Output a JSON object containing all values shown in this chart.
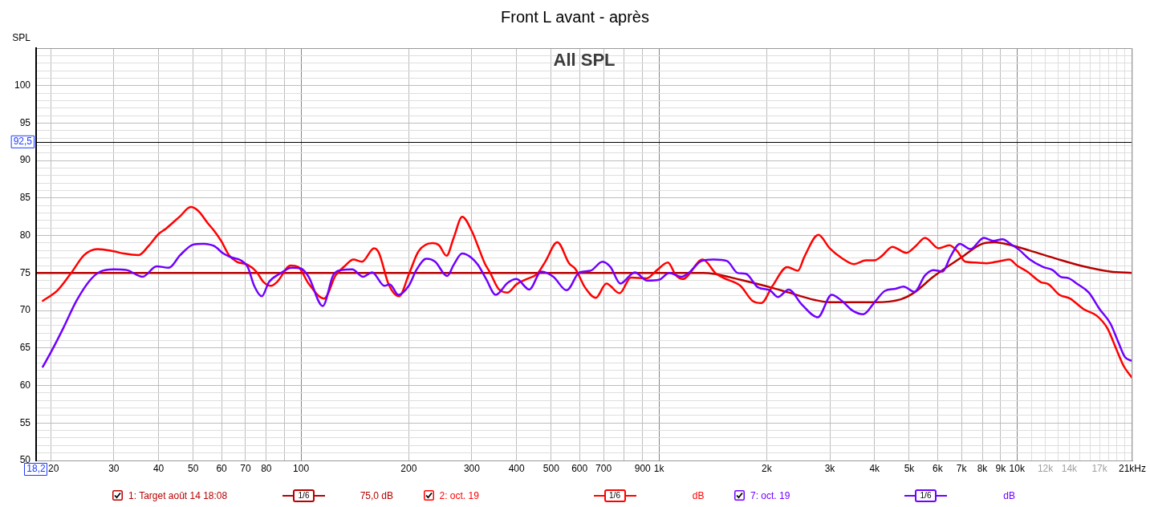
{
  "chart_data": {
    "type": "line",
    "title": "Front L avant - après",
    "subtitle": "All SPL",
    "xlabel": "Hz",
    "ylabel": "SPL",
    "log": "x",
    "grid": true,
    "legend": "bottom",
    "xlim": [
      18.2,
      21000
    ],
    "ylim": [
      50,
      105
    ],
    "xticks": [
      {
        "value": 18.2,
        "label": "18,2"
      },
      20,
      30,
      40,
      50,
      60,
      70,
      80,
      {
        "value": 90,
        "label": null
      },
      100,
      200,
      300,
      400,
      500,
      600,
      700,
      {
        "value": 800,
        "label": null
      },
      900,
      {
        "value": 1000,
        "label": "1k"
      },
      {
        "value": 2000,
        "label": "2k"
      },
      {
        "value": 3000,
        "label": "3k"
      },
      {
        "value": 4000,
        "label": "4k"
      },
      {
        "value": 5000,
        "label": "5k"
      },
      {
        "value": 6000,
        "label": "6k"
      },
      {
        "value": 7000,
        "label": "7k"
      },
      {
        "value": 8000,
        "label": "8k"
      },
      {
        "value": 9000,
        "label": "9k"
      },
      {
        "value": 10000,
        "label": "10k"
      },
      {
        "value": 11000,
        "label": null
      },
      {
        "value": 12000,
        "label": "12k"
      },
      {
        "value": 13000,
        "label": null
      },
      {
        "value": 14000,
        "label": "14k"
      },
      {
        "value": 15000,
        "label": null
      },
      {
        "value": 16000,
        "label": null
      },
      {
        "value": 17000,
        "label": "17k"
      },
      {
        "value": 18000,
        "label": null
      },
      {
        "value": 19000,
        "label": null
      },
      {
        "value": 20000,
        "label": null
      },
      {
        "value": 21000,
        "label": "21k"
      }
    ],
    "yticks": [
      50,
      {
        "value": 51,
        "label": null
      },
      {
        "value": 52,
        "label": null
      },
      {
        "value": 53,
        "label": null
      },
      {
        "value": 54,
        "label": null
      },
      55,
      {
        "value": 56,
        "label": null
      },
      {
        "value": 57,
        "label": null
      },
      {
        "value": 58,
        "label": null
      },
      {
        "value": 59,
        "label": null
      },
      60,
      {
        "value": 61,
        "label": null
      },
      {
        "value": 62,
        "label": null
      },
      {
        "value": 63,
        "label": null
      },
      {
        "value": 64,
        "label": null
      },
      65,
      {
        "value": 66,
        "label": null
      },
      {
        "value": 67,
        "label": null
      },
      {
        "value": 68,
        "label": null
      },
      {
        "value": 69,
        "label": null
      },
      70,
      {
        "value": 71,
        "label": null
      },
      {
        "value": 72,
        "label": null
      },
      {
        "value": 73,
        "label": null
      },
      {
        "value": 74,
        "label": null
      },
      75,
      {
        "value": 76,
        "label": null
      },
      {
        "value": 77,
        "label": null
      },
      {
        "value": 78,
        "label": null
      },
      {
        "value": 79,
        "label": null
      },
      80,
      {
        "value": 81,
        "label": null
      },
      {
        "value": 82,
        "label": null
      },
      {
        "value": 83,
        "label": null
      },
      {
        "value": 84,
        "label": null
      },
      85,
      {
        "value": 86,
        "label": null
      },
      {
        "value": 87,
        "label": null
      },
      {
        "value": 88,
        "label": null
      },
      {
        "value": 89,
        "label": null
      },
      90,
      {
        "value": 91,
        "label": null
      },
      {
        "value": 92,
        "label": null
      },
      {
        "value": 93,
        "label": null
      },
      {
        "value": 94,
        "label": null
      },
      95,
      {
        "value": 96,
        "label": null
      },
      {
        "value": 97,
        "label": null
      },
      {
        "value": 98,
        "label": null
      },
      {
        "value": 99,
        "label": null
      },
      100,
      {
        "value": 101,
        "label": null
      },
      {
        "value": 102,
        "label": null
      },
      {
        "value": 103,
        "label": null
      },
      {
        "value": 104,
        "label": null
      },
      {
        "value": 105,
        "label": null
      }
    ],
    "ref_lines": [
      {
        "axis": "y",
        "value": 92.5,
        "label": "92,5",
        "color": "#000000"
      }
    ],
    "annotations": [
      "1/6",
      "75,0 dB",
      "1/6",
      "dB",
      "1/6",
      "dB"
    ],
    "series": [
      {
        "name": "1: Target août 14 18:08",
        "color": "#b80000",
        "x": [
          18.2,
          1325,
          1420,
          1688,
          2046,
          2302,
          2730,
          3000,
          4000,
          4738,
          5168,
          5835,
          7000,
          8000,
          8656,
          9640,
          10862,
          12903,
          15332,
          18222,
          21000
        ],
        "values": [
          75,
          75,
          74.9,
          74.1,
          73.1,
          72.4,
          71.4,
          71.1,
          71.1,
          71.5,
          72.4,
          74.5,
          77.1,
          78.9,
          79.1,
          78.7,
          78.0,
          76.9,
          75.9,
          75.2,
          75.0
        ]
      },
      {
        "name": "2: oct. 19",
        "color": "#ff0000",
        "x": [
          19.0,
          20.9,
          22.8,
          24.8,
          27.0,
          30,
          32.0,
          35.2,
          37.5,
          40,
          41.9,
          46.0,
          49.2,
          51.6,
          54.8,
          57.7,
          60,
          62.9,
          66.2,
          71.0,
          75.0,
          78.6,
          82.5,
          85.7,
          93.5,
          98.3,
          105,
          116,
          125,
          133,
          140,
          148,
          160,
          165,
          176,
          188,
          200,
          213,
          233,
          243,
          255,
          267,
          282,
          300,
          312,
          326,
          337,
          356,
          378,
          400,
          427,
          457,
          481,
          520,
          561,
          585,
          621,
          666,
          713,
          776,
          835,
          924,
          988,
          1059,
          1115,
          1164,
          1325,
          1445,
          1522,
          1688,
          1824,
          1931,
          2076,
          2281,
          2443,
          2549,
          2787,
          3000,
          3241,
          3505,
          3786,
          4000,
          4198,
          4486,
          4907,
          5213,
          5538,
          6042,
          6472,
          6817,
          7170,
          7668,
          8220,
          8956,
          9531,
          10000,
          10677,
          11638,
          12254,
          13131,
          14067,
          15332,
          16711,
          17904,
          18851,
          19859,
          20910
        ],
        "values": [
          71.3,
          72.7,
          75.0,
          77.4,
          78.2,
          77.9,
          77.6,
          77.4,
          78.6,
          80.2,
          80.9,
          82.6,
          83.8,
          83.3,
          81.7,
          80.4,
          79.2,
          77.4,
          76.5,
          76.1,
          75.2,
          73.8,
          73.3,
          73.8,
          76.0,
          75.8,
          73.6,
          71.6,
          74.7,
          76.0,
          76.8,
          76.5,
          78.3,
          77.7,
          73.4,
          71.9,
          74.8,
          77.9,
          79.0,
          78.7,
          77.3,
          79.7,
          82.5,
          80.6,
          78.6,
          76.3,
          75.1,
          72.9,
          72.4,
          73.5,
          74.2,
          74.9,
          76.5,
          79.1,
          76.3,
          75.5,
          73.1,
          71.7,
          73.6,
          72.3,
          74.4,
          74.3,
          75.4,
          76.4,
          74.7,
          74.2,
          76.8,
          74.9,
          74.3,
          73.3,
          71.3,
          71.0,
          73.3,
          75.8,
          75.3,
          77.2,
          80.1,
          78.3,
          77.0,
          76.2,
          76.7,
          76.7,
          77.3,
          78.5,
          77.7,
          78.6,
          79.7,
          78.3,
          78.7,
          77.9,
          76.5,
          76.4,
          76.3,
          76.6,
          76.8,
          76.0,
          75.2,
          73.8,
          73.5,
          72.1,
          71.6,
          70.2,
          69.3,
          67.6,
          65.1,
          62.6,
          61.1
        ]
      },
      {
        "name": "7: oct. 19",
        "color": "#7000ff",
        "x": [
          19.0,
          20.0,
          21.7,
          23.6,
          25.7,
          27.5,
          30,
          32.6,
          36.1,
          39.5,
          42.7,
          46.0,
          50,
          52.9,
          57.2,
          60.7,
          63.8,
          67.9,
          71.0,
          74.0,
          77.7,
          81.4,
          87.2,
          94.2,
          100,
          105,
          115,
          123,
          130,
          139,
          149,
          158,
          171,
          177,
          187,
          200,
          210,
          224,
          237,
          256,
          267,
          282,
          300,
          312,
          329,
          350,
          378,
          400,
          434,
          469,
          507,
          552,
          600,
          643,
          695,
          732,
          780,
          856,
          927,
          1000,
          1068,
          1154,
          1216,
          1314,
          1420,
          1549,
          1660,
          1748,
          1889,
          2041,
          2149,
          2302,
          2506,
          2777,
          3036,
          3241,
          3471,
          3722,
          4000,
          4271,
          4577,
          4822,
          5168,
          5538,
          5835,
          6198,
          6520,
          6925,
          7409,
          8083,
          8582,
          9113,
          9640,
          10138,
          10862,
          11837,
          12574,
          13243,
          13947,
          14690,
          15870,
          17007,
          18222,
          19181,
          20021,
          20910
        ],
        "values": [
          62.5,
          64.4,
          67.7,
          71.3,
          74.0,
          75.2,
          75.5,
          75.4,
          74.5,
          75.9,
          75.7,
          77.4,
          78.8,
          78.9,
          78.6,
          77.6,
          77.1,
          76.7,
          75.8,
          73.3,
          71.9,
          73.8,
          74.9,
          75.7,
          75.6,
          74.5,
          70.6,
          74.7,
          75.4,
          75.5,
          74.5,
          75.1,
          73.3,
          73.5,
          72.1,
          73.3,
          75.4,
          76.9,
          76.5,
          74.6,
          76.1,
          77.6,
          77.0,
          76.1,
          74.2,
          72.1,
          73.7,
          74.2,
          72.8,
          75.2,
          74.5,
          72.7,
          75.1,
          75.3,
          76.5,
          75.8,
          73.6,
          75.1,
          74.0,
          74.1,
          75.0,
          74.5,
          75.1,
          76.6,
          76.8,
          76.6,
          75.0,
          74.9,
          73.1,
          72.7,
          71.8,
          72.8,
          70.8,
          69.1,
          72.1,
          71.3,
          70.0,
          69.5,
          71.1,
          72.6,
          72.9,
          73.2,
          72.5,
          74.7,
          75.4,
          75.2,
          77.2,
          78.9,
          78.2,
          79.7,
          79.3,
          79.5,
          78.8,
          78.1,
          76.8,
          75.8,
          75.4,
          74.5,
          74.3,
          73.6,
          72.4,
          70.2,
          68.3,
          65.8,
          63.8,
          63.3
        ]
      }
    ]
  }
}
